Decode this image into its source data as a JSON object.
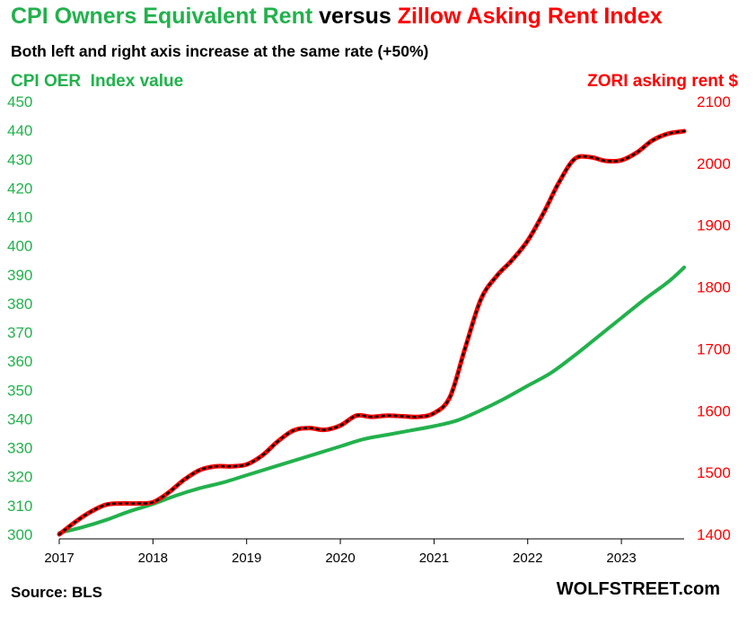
{
  "title": {
    "part1": "CPI Owners Equivalent Rent",
    "part2": " versus ",
    "part3": "Zillow Asking Rent Index"
  },
  "subtitle": "Both left and right axis increase at the same rate (+50%)",
  "left_axis_label": "CPI OER  Index value",
  "right_axis_label": "ZORI asking rent $",
  "source": "Source: BLS",
  "brand": "WOLFSTREET.com",
  "colors": {
    "oer": "#22b14c",
    "zori": "#ff0000",
    "marker": "#000000"
  },
  "chart_data": {
    "type": "line",
    "title": "CPI Owners Equivalent Rent versus Zillow Asking Rent Index",
    "xlabel": "",
    "x_ticks": [
      "2017",
      "2018",
      "2019",
      "2020",
      "2021",
      "2022",
      "2023"
    ],
    "xlim": [
      2017.0,
      2023.67
    ],
    "y_left": {
      "label": "CPI OER  Index value",
      "range": [
        300,
        450
      ],
      "ticks": [
        300,
        310,
        320,
        330,
        340,
        350,
        360,
        370,
        380,
        390,
        400,
        410,
        420,
        430,
        440,
        450
      ]
    },
    "y_right": {
      "label": "ZORI asking rent $",
      "range": [
        1400,
        2100
      ],
      "ticks": [
        1400,
        1500,
        1600,
        1700,
        1800,
        1900,
        2000,
        2100
      ]
    },
    "grid": false,
    "series": [
      {
        "name": "CPI OER",
        "axis": "left",
        "points": [
          [
            2017.0,
            300.5
          ],
          [
            2017.25,
            302.5
          ],
          [
            2017.5,
            305.0
          ],
          [
            2017.75,
            308.0
          ],
          [
            2018.0,
            310.5
          ],
          [
            2018.25,
            313.5
          ],
          [
            2018.5,
            316.0
          ],
          [
            2018.75,
            318.0
          ],
          [
            2019.0,
            320.5
          ],
          [
            2019.25,
            323.0
          ],
          [
            2019.5,
            325.5
          ],
          [
            2019.75,
            328.0
          ],
          [
            2020.0,
            330.5
          ],
          [
            2020.25,
            333.0
          ],
          [
            2020.5,
            334.5
          ],
          [
            2020.75,
            336.0
          ],
          [
            2021.0,
            337.5
          ],
          [
            2021.25,
            339.5
          ],
          [
            2021.5,
            343.0
          ],
          [
            2021.75,
            347.0
          ],
          [
            2022.0,
            351.5
          ],
          [
            2022.25,
            356.0
          ],
          [
            2022.5,
            362.0
          ],
          [
            2022.75,
            368.5
          ],
          [
            2023.0,
            375.0
          ],
          [
            2023.25,
            381.5
          ],
          [
            2023.5,
            387.5
          ],
          [
            2023.67,
            392.5
          ]
        ]
      },
      {
        "name": "ZORI",
        "axis": "right",
        "points": [
          [
            2017.0,
            1400
          ],
          [
            2017.17,
            1420
          ],
          [
            2017.33,
            1436
          ],
          [
            2017.5,
            1448
          ],
          [
            2017.67,
            1450
          ],
          [
            2017.83,
            1450
          ],
          [
            2018.0,
            1452
          ],
          [
            2018.17,
            1468
          ],
          [
            2018.33,
            1488
          ],
          [
            2018.5,
            1504
          ],
          [
            2018.67,
            1510
          ],
          [
            2018.83,
            1510
          ],
          [
            2019.0,
            1513
          ],
          [
            2019.17,
            1528
          ],
          [
            2019.33,
            1550
          ],
          [
            2019.5,
            1568
          ],
          [
            2019.67,
            1572
          ],
          [
            2019.83,
            1569
          ],
          [
            2020.0,
            1576
          ],
          [
            2020.17,
            1592
          ],
          [
            2020.33,
            1590
          ],
          [
            2020.5,
            1592
          ],
          [
            2020.67,
            1591
          ],
          [
            2020.83,
            1590
          ],
          [
            2021.0,
            1596
          ],
          [
            2021.17,
            1622
          ],
          [
            2021.33,
            1700
          ],
          [
            2021.5,
            1780
          ],
          [
            2021.67,
            1818
          ],
          [
            2021.83,
            1843
          ],
          [
            2022.0,
            1875
          ],
          [
            2022.17,
            1920
          ],
          [
            2022.33,
            1968
          ],
          [
            2022.5,
            2007
          ],
          [
            2022.67,
            2010
          ],
          [
            2022.83,
            2004
          ],
          [
            2023.0,
            2005
          ],
          [
            2023.17,
            2018
          ],
          [
            2023.33,
            2037
          ],
          [
            2023.5,
            2048
          ],
          [
            2023.67,
            2052
          ]
        ]
      }
    ]
  }
}
